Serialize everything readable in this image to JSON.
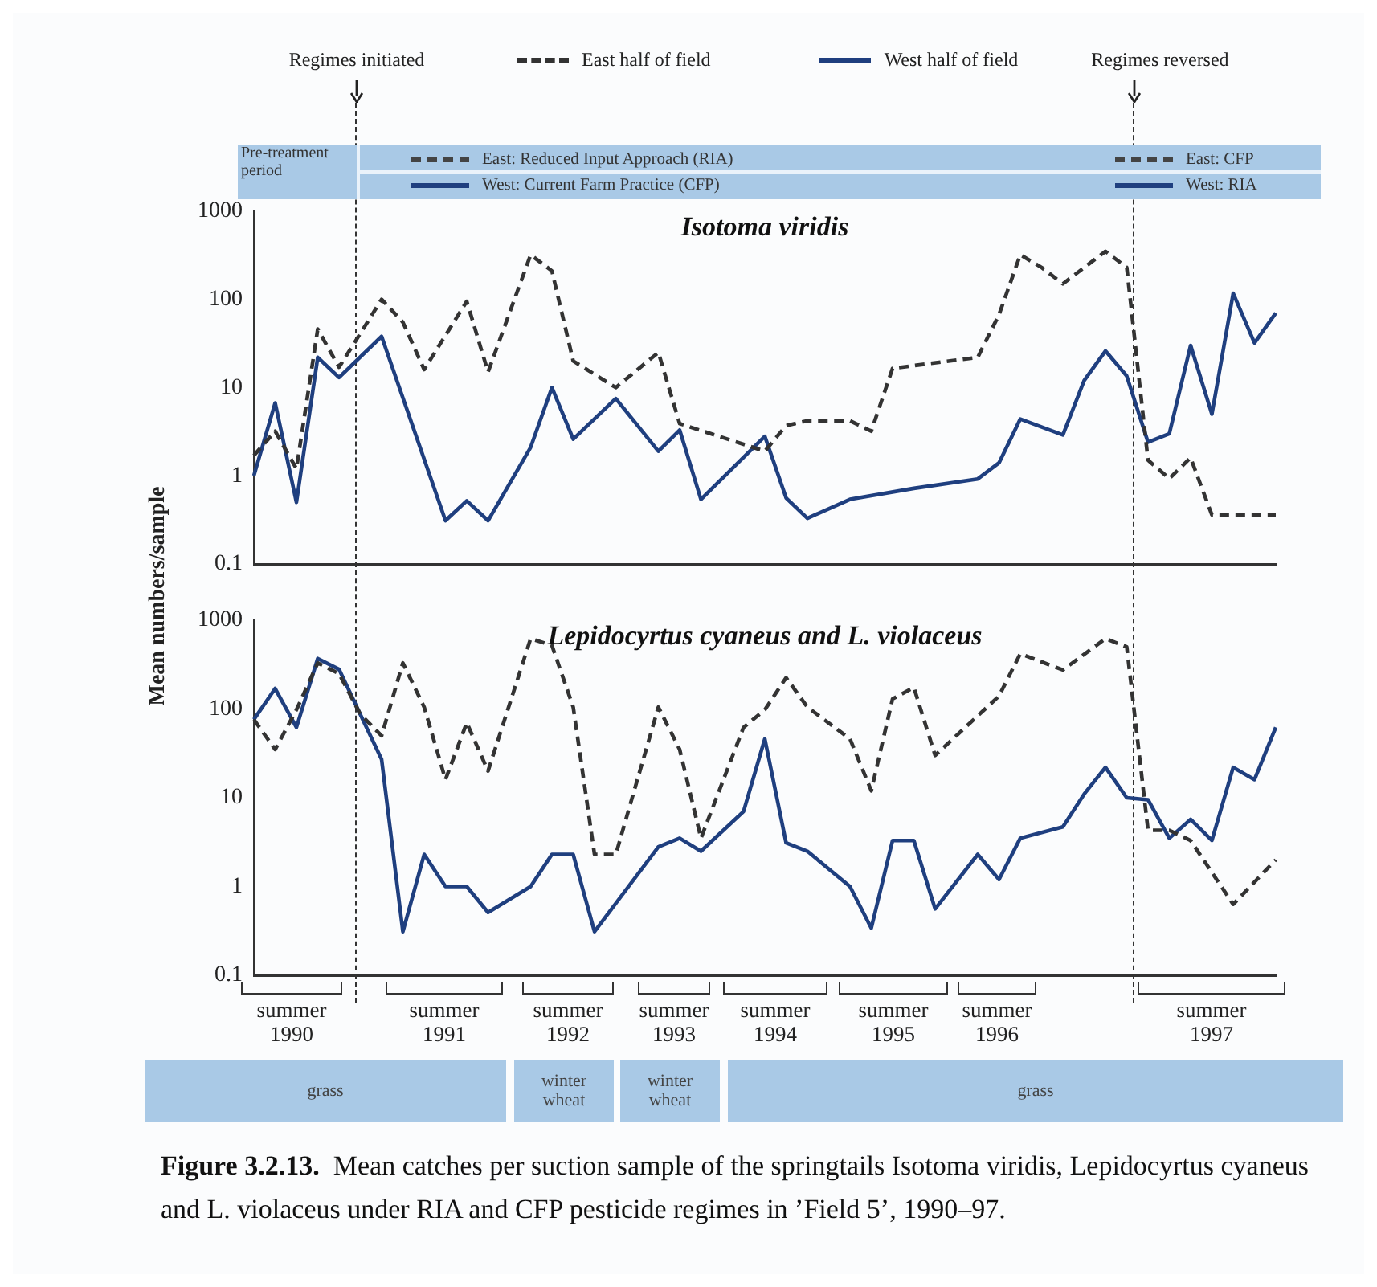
{
  "chart_data": [
    {
      "type": "line",
      "title": "Isotoma viridis",
      "ylabel": "Mean numbers/sample",
      "log": "y",
      "ylim": [
        0.1,
        1000
      ],
      "yticks": [
        0.1,
        1,
        10,
        100,
        1000
      ],
      "tick_labels": "y",
      "legend": "top",
      "marker": "none",
      "categories": [
        null,
        null,
        null,
        null,
        null,
        null,
        null,
        null,
        null,
        null,
        null,
        null,
        null,
        null,
        null,
        null,
        null,
        null,
        null,
        null,
        null,
        null,
        null,
        null,
        null,
        null,
        null,
        null,
        null,
        null,
        null,
        null,
        null,
        null,
        null,
        null,
        null,
        null,
        null,
        null,
        null,
        null,
        null,
        null,
        null,
        null,
        null,
        null,
        null
      ],
      "series": [
        {
          "name": "East half of field",
          "color": "#333333",
          "line_style": "dashed",
          "values": [
            1.7,
            3.2,
            1.2,
            46,
            17,
            41,
            100,
            55,
            16,
            null,
            95,
            15,
            null,
            320,
            210,
            20,
            null,
            10,
            null,
            25,
            3.9,
            null,
            null,
            null,
            1.9,
            3.7,
            4.2,
            null,
            4.2,
            3.2,
            16.5,
            null,
            null,
            null,
            22,
            67,
            320,
            230,
            150,
            null,
            350,
            230,
            1.5,
            0.93,
            1.6,
            0.36,
            null,
            null,
            0.36
          ]
        },
        {
          "name": "West half of field",
          "color": "#1f3f7f",
          "line_style": "solid",
          "values": [
            1.0,
            6.7,
            0.5,
            22,
            13,
            null,
            38,
            null,
            null,
            0.31,
            0.52,
            0.31,
            null,
            2.1,
            10,
            2.6,
            null,
            7.5,
            null,
            1.9,
            3.3,
            0.54,
            null,
            null,
            2.8,
            0.56,
            0.33,
            null,
            0.54,
            null,
            null,
            0.72,
            null,
            null,
            0.92,
            1.4,
            4.4,
            null,
            2.9,
            12,
            26,
            13.5,
            2.4,
            3.0,
            30,
            5,
            117,
            32,
            70
          ]
        }
      ],
      "annotations": [
        "Pre-treatment period",
        "East: Reduced Input Approach (RIA)",
        "West: Current Farm Practice (CFP)",
        "East: CFP",
        "West: RIA",
        "Regimes initiated",
        "Regimes reversed"
      ]
    },
    {
      "type": "line",
      "title": "Lepidocyrtus cyaneus and L. violaceus",
      "log": "y",
      "ylim": [
        0.1,
        1000
      ],
      "yticks": [
        0.1,
        1,
        10,
        100,
        1000
      ],
      "tick_labels": "y",
      "marker": "none",
      "categories": [
        null,
        null,
        null,
        null,
        null,
        null,
        null,
        null,
        null,
        null,
        null,
        null,
        null,
        null,
        null,
        null,
        null,
        null,
        null,
        null,
        null,
        null,
        null,
        null,
        null,
        null,
        null,
        null,
        null,
        null,
        null,
        null,
        null,
        null,
        null,
        null,
        null,
        null,
        null,
        null,
        null,
        null,
        null,
        null,
        null,
        null,
        null,
        null,
        null
      ],
      "series": [
        {
          "color": "#333333",
          "line_style": "dashed",
          "values": [
            76,
            35,
            98,
            330,
            250,
            87,
            50,
            330,
            105,
            16,
            70,
            20,
            null,
            620,
            520,
            105,
            2.3,
            2.3,
            null,
            105,
            35,
            3.5,
            null,
            62,
            98,
            225,
            105,
            null,
            46,
            12,
            130,
            175,
            30,
            null,
            null,
            140,
            420,
            null,
            275,
            null,
            620,
            500,
            4.3,
            4.3,
            3.3,
            null,
            0.63,
            null,
            2.0
          ]
        },
        {
          "color": "#1f3f7f",
          "line_style": "solid",
          "values": [
            76,
            170,
            62,
            370,
            280,
            87,
            27,
            0.31,
            2.3,
            1.0,
            1.0,
            0.51,
            null,
            1.0,
            2.3,
            2.3,
            0.31,
            null,
            null,
            2.8,
            3.5,
            2.5,
            null,
            7,
            46,
            3.1,
            2.5,
            null,
            1.0,
            0.34,
            3.3,
            3.3,
            0.56,
            null,
            2.3,
            1.2,
            3.5,
            null,
            4.7,
            11,
            22,
            10,
            9.5,
            3.5,
            5.7,
            3.3,
            22,
            16,
            62
          ]
        }
      ],
      "annotations": [
        "summer 1990",
        "summer 1991",
        "summer 1992",
        "summer 1993",
        "summer 1994",
        "summer 1995",
        "summer 1996",
        "summer 1997",
        "grass",
        "winter wheat",
        "winter wheat",
        "grass",
        "Figure 3.2.13.",
        "Mean catches per suction sample of the springtails Isotoma viridis, Lepidocyrtus cyaneus and L. violaceus under RIA and CFP pesticide regimes in ’Field 5’, 1990–97."
      ]
    }
  ]
}
